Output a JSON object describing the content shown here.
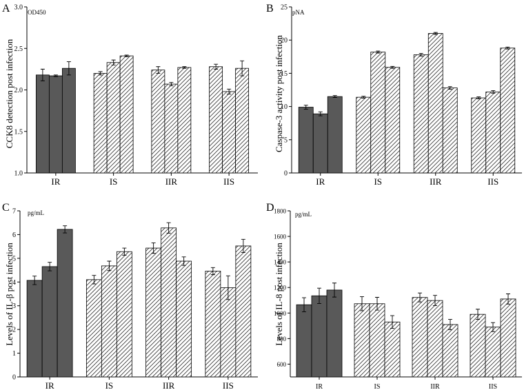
{
  "chart_data": [
    {
      "panel": "A",
      "type": "bar",
      "unit_label": "OD450",
      "ylabel": "CCK8 detection post infection",
      "categories": [
        "IR",
        "IS",
        "IIR",
        "IIS"
      ],
      "ylim": [
        1.0,
        3.0
      ],
      "ytick_labels": [
        "1.0",
        "1.5",
        "2.0",
        "2.5",
        "3.0"
      ],
      "values": [
        [
          2.18,
          2.17,
          2.26
        ],
        [
          2.2,
          2.33,
          2.41
        ],
        [
          2.24,
          2.07,
          2.27
        ],
        [
          2.28,
          1.98,
          2.26
        ]
      ],
      "errors": [
        [
          0.07,
          0.01,
          0.08
        ],
        [
          0.02,
          0.03,
          0.01
        ],
        [
          0.04,
          0.02,
          0.01
        ],
        [
          0.03,
          0.03,
          0.09
        ]
      ]
    },
    {
      "panel": "B",
      "type": "bar",
      "unit_label": "pNA",
      "ylabel": "Caspase-3 activity post infection",
      "categories": [
        "IR",
        "IS",
        "IIR",
        "IIS"
      ],
      "ylim": [
        0,
        25
      ],
      "ytick_labels": [
        "0",
        "5",
        "10",
        "15",
        "20",
        "25"
      ],
      "values": [
        [
          9.9,
          8.9,
          11.5
        ],
        [
          11.4,
          18.2,
          15.9
        ],
        [
          17.8,
          21.0,
          12.8
        ],
        [
          11.3,
          12.2,
          18.8
        ]
      ],
      "errors": [
        [
          0.3,
          0.3,
          0.15
        ],
        [
          0.15,
          0.15,
          0.15
        ],
        [
          0.2,
          0.15,
          0.2
        ],
        [
          0.15,
          0.2,
          0.15
        ]
      ]
    },
    {
      "panel": "C",
      "type": "bar",
      "unit_label": "pg/mL",
      "ylabel": "Levels of IL-β post infection",
      "categories": [
        "IR",
        "IS",
        "IIR",
        "IIS"
      ],
      "ylim": [
        0,
        7
      ],
      "ytick_labels": [
        "0",
        "1",
        "2",
        "3",
        "4",
        "5",
        "6",
        "7"
      ],
      "values": [
        [
          4.07,
          4.65,
          6.22
        ],
        [
          4.1,
          4.68,
          5.28
        ],
        [
          5.43,
          6.28,
          4.88
        ],
        [
          4.46,
          3.76,
          5.52
        ]
      ],
      "errors": [
        [
          0.18,
          0.18,
          0.15
        ],
        [
          0.18,
          0.2,
          0.15
        ],
        [
          0.22,
          0.22,
          0.18
        ],
        [
          0.15,
          0.5,
          0.28
        ]
      ]
    },
    {
      "panel": "D",
      "type": "bar",
      "unit_label": "pg/mL",
      "ylabel": "Levels of IL-8 post infection",
      "categories": [
        "IR",
        "IS",
        "IIR",
        "IIS"
      ],
      "ylim": [
        500,
        1800
      ],
      "ytick_labels": [
        "600",
        "800",
        "1000",
        "1200",
        "1400",
        "1600",
        "1800"
      ],
      "values": [
        [
          1065,
          1135,
          1180
        ],
        [
          1073,
          1073,
          930
        ],
        [
          1122,
          1098,
          910
        ],
        [
          990,
          890,
          1110
        ]
      ],
      "errors": [
        [
          55,
          60,
          55
        ],
        [
          55,
          50,
          50
        ],
        [
          35,
          40,
          40
        ],
        [
          40,
          35,
          40
        ]
      ]
    }
  ]
}
